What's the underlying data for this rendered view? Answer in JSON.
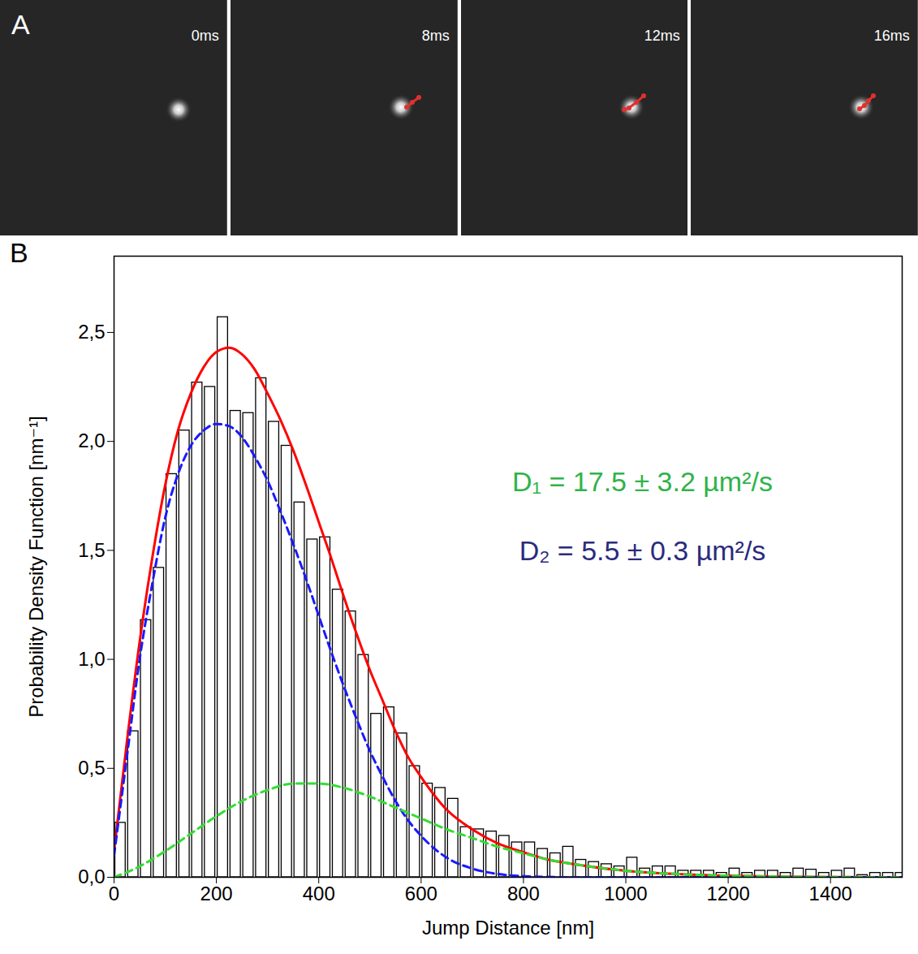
{
  "panel_a": {
    "label": "A",
    "frames": [
      "0ms",
      "8ms",
      "12ms",
      "16ms"
    ]
  },
  "chart_data": {
    "type": "histogram",
    "panel_label": "B",
    "x_label": "Jump Distance [nm]",
    "y_label": "Probability Density Function [nm⁻¹]",
    "bins": [
      0,
      25,
      50,
      75,
      100,
      125,
      150,
      175,
      200,
      225,
      250,
      275,
      300,
      325,
      350,
      375,
      400,
      425,
      450,
      475,
      500,
      525,
      550,
      575,
      600,
      625,
      650,
      675,
      700,
      725,
      750,
      775,
      800,
      825,
      850,
      875,
      900,
      925,
      950,
      975,
      1000,
      1025,
      1050,
      1075,
      1100,
      1125,
      1150,
      1175,
      1200,
      1225,
      1250,
      1275,
      1300,
      1325,
      1350,
      1375,
      1400,
      1425,
      1450,
      1475,
      1500,
      1525,
      1550
    ],
    "values": [
      0.25,
      0.67,
      1.18,
      1.42,
      1.85,
      2.05,
      2.27,
      2.25,
      2.57,
      2.14,
      2.13,
      2.29,
      2.09,
      1.98,
      1.72,
      1.55,
      1.56,
      1.32,
      1.22,
      1.02,
      0.75,
      0.78,
      0.66,
      0.51,
      0.43,
      0.41,
      0.36,
      0.23,
      0.22,
      0.21,
      0.19,
      0.16,
      0.16,
      0.13,
      0.11,
      0.14,
      0.08,
      0.07,
      0.06,
      0.05,
      0.09,
      0.04,
      0.05,
      0.05,
      0.03,
      0.03,
      0.03,
      0.02,
      0.04,
      0.02,
      0.03,
      0.03,
      0.02,
      0.04,
      0.035,
      0.02,
      0.03,
      0.04,
      0.01,
      0.02,
      0.02,
      0.02
    ],
    "color": "#ffffff",
    "series": [
      {
        "color": "#ff0000",
        "type": "line",
        "line_style": "solid",
        "x": [
          0,
          25,
          50,
          75,
          100,
          125,
          150,
          175,
          200,
          225,
          250,
          275,
          300,
          325,
          350,
          375,
          400,
          425,
          450,
          475,
          500,
          525,
          550,
          575,
          600,
          650,
          700,
          750,
          800,
          850,
          900,
          1000,
          1100,
          1200,
          1300,
          1400,
          1540
        ],
        "values": [
          0.12,
          0.62,
          1.08,
          1.47,
          1.8,
          2.05,
          2.22,
          2.34,
          2.41,
          2.43,
          2.4,
          2.33,
          2.22,
          2.1,
          1.96,
          1.8,
          1.63,
          1.46,
          1.28,
          1.11,
          0.95,
          0.81,
          0.67,
          0.55,
          0.46,
          0.31,
          0.22,
          0.155,
          0.115,
          0.08,
          0.06,
          0.03,
          0.015,
          0.007,
          0.003,
          0.001,
          0
        ]
      },
      {
        "color": "#1a1aff",
        "type": "line",
        "line_style": "dashed",
        "x": [
          0,
          25,
          50,
          75,
          100,
          125,
          150,
          175,
          200,
          225,
          250,
          275,
          300,
          325,
          350,
          375,
          400,
          425,
          450,
          475,
          500,
          525,
          550,
          575,
          600,
          650,
          700,
          750,
          800,
          900,
          1000,
          1540
        ],
        "values": [
          0.1,
          0.55,
          1.0,
          1.35,
          1.65,
          1.85,
          1.98,
          2.05,
          2.08,
          2.07,
          2.02,
          1.93,
          1.82,
          1.68,
          1.53,
          1.37,
          1.2,
          1.03,
          0.87,
          0.72,
          0.58,
          0.46,
          0.35,
          0.26,
          0.19,
          0.09,
          0.04,
          0.015,
          0.005,
          0,
          0,
          0
        ]
      },
      {
        "color": "#33dd33",
        "type": "line",
        "line_style": "dashed",
        "x": [
          0,
          50,
          100,
          150,
          200,
          250,
          300,
          350,
          400,
          450,
          500,
          550,
          600,
          650,
          700,
          750,
          800,
          850,
          900,
          1000,
          1100,
          1200,
          1300,
          1400,
          1540
        ],
        "values": [
          0,
          0.05,
          0.12,
          0.2,
          0.28,
          0.35,
          0.4,
          0.43,
          0.43,
          0.41,
          0.37,
          0.32,
          0.27,
          0.22,
          0.18,
          0.14,
          0.11,
          0.08,
          0.06,
          0.03,
          0.015,
          0.007,
          0.003,
          0.001,
          0
        ]
      }
    ],
    "annotations": [
      {
        "text": "D₁ = 17.5 ± 3.2 µm²/s",
        "color": "#2fb34a"
      },
      {
        "text": "D₂ = 5.5 ± 0.3 µm²/s",
        "color": "#2b2b7d"
      }
    ],
    "xlim": [
      0,
      1540
    ],
    "ylim": [
      0,
      2.85
    ],
    "xticks": [
      0,
      200,
      400,
      600,
      800,
      1000,
      1200,
      1400
    ],
    "yticks": [
      {
        "value": 0,
        "label": "0,0"
      },
      {
        "value": 0.5,
        "label": "0,5"
      },
      {
        "value": 1,
        "label": "1,0"
      },
      {
        "value": 1.5,
        "label": "1,5"
      },
      {
        "value": 2,
        "label": "2,0"
      },
      {
        "value": 2.5,
        "label": "2,5"
      }
    ],
    "grid": false
  }
}
